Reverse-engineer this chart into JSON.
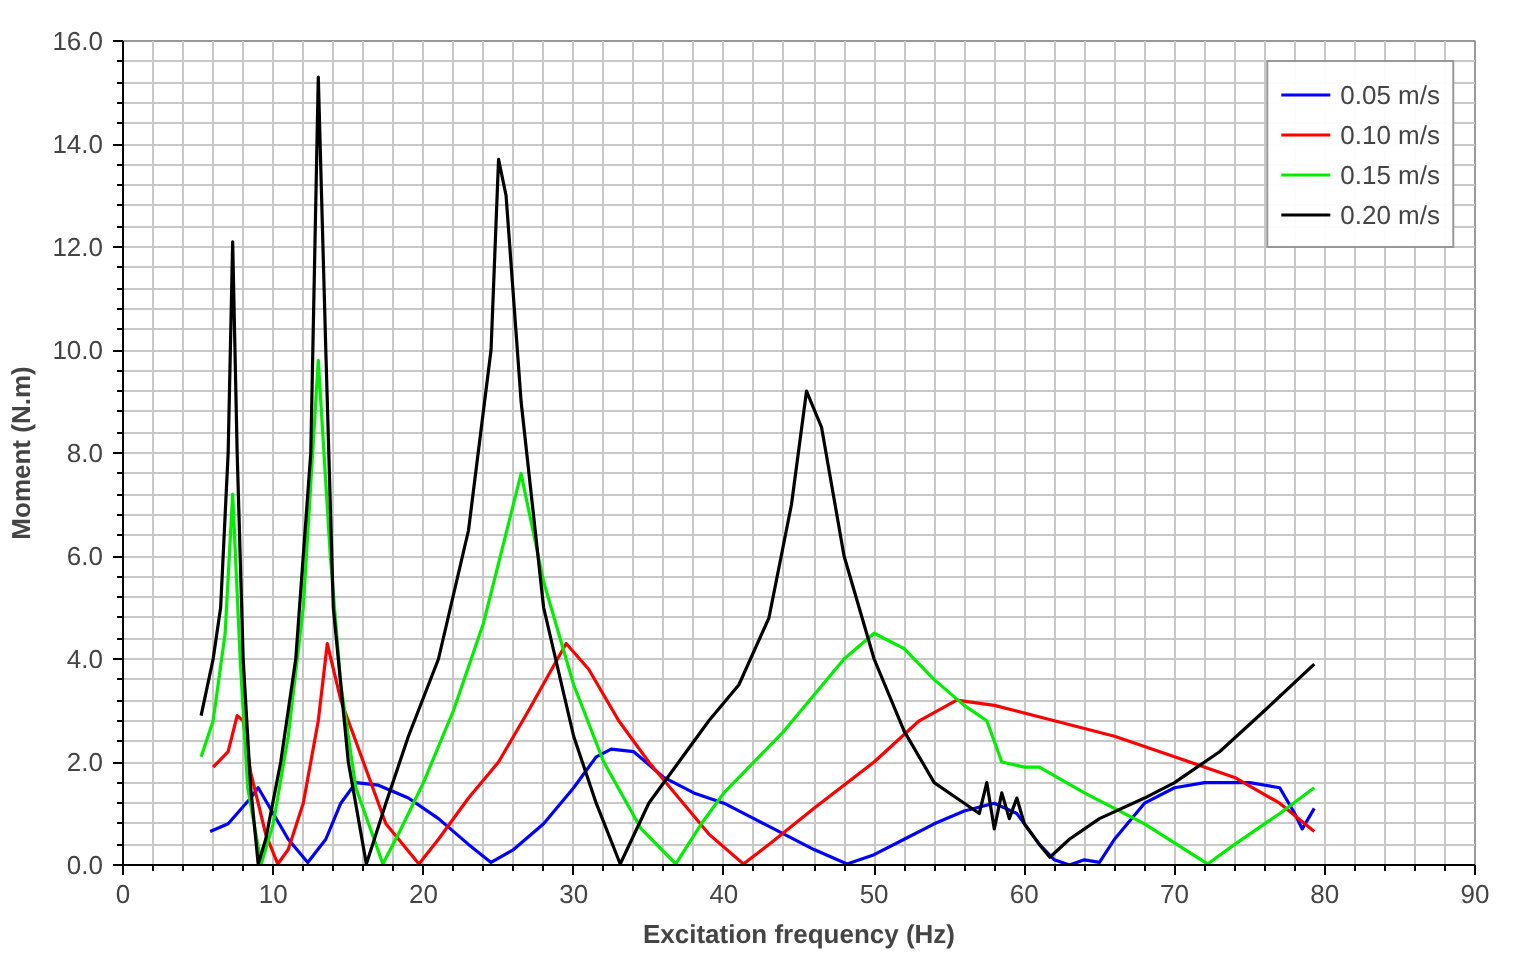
{
  "chart_data": {
    "type": "line",
    "xlabel": "Excitation frequency (Hz)",
    "ylabel": "Moment (N.m)",
    "xlim": [
      0,
      90
    ],
    "ylim": [
      0,
      16
    ],
    "xticks": [
      0,
      10,
      20,
      30,
      40,
      50,
      60,
      70,
      80,
      90
    ],
    "yticks": [
      {
        "value": 0,
        "label": "0.0"
      },
      {
        "value": 2,
        "label": "2.0"
      },
      {
        "value": 4,
        "label": "4.0"
      },
      {
        "value": 6,
        "label": "6.0"
      },
      {
        "value": 8,
        "label": "8.0"
      },
      {
        "value": 10,
        "label": "10.0"
      },
      {
        "value": 12,
        "label": "12.0"
      },
      {
        "value": 14,
        "label": "14.0"
      },
      {
        "value": 16,
        "label": "16.0"
      }
    ],
    "grid": true,
    "legend": "top right",
    "marker": "none",
    "line_style": "solid",
    "series": [
      {
        "name": "0.05 m/s",
        "color": "#0000ff",
        "x": [
          5.8,
          7,
          8.5,
          9,
          10,
          11,
          12.3,
          13.5,
          14.5,
          15.5,
          17,
          19,
          21,
          23,
          24.5,
          26,
          28,
          30,
          31.5,
          32.5,
          34,
          36,
          38,
          40,
          42,
          44,
          46,
          48.2,
          50,
          52,
          54,
          56,
          58,
          59.5,
          61,
          62,
          63,
          64,
          65,
          66,
          68,
          70,
          72,
          75,
          77,
          78,
          78.5,
          79.3
        ],
        "values": [
          0.65,
          0.8,
          1.3,
          1.5,
          1.0,
          0.5,
          0.05,
          0.5,
          1.2,
          1.6,
          1.55,
          1.3,
          0.9,
          0.4,
          0.05,
          0.3,
          0.8,
          1.5,
          2.1,
          2.25,
          2.2,
          1.7,
          1.4,
          1.2,
          0.9,
          0.6,
          0.3,
          0.02,
          0.2,
          0.5,
          0.8,
          1.05,
          1.2,
          1.0,
          0.4,
          0.1,
          0.0,
          0.1,
          0.05,
          0.5,
          1.2,
          1.5,
          1.6,
          1.6,
          1.5,
          1.0,
          0.7,
          1.1
        ]
      },
      {
        "name": "0.10 m/s",
        "color": "#ff0000",
        "x": [
          6,
          7,
          7.6,
          8,
          8.5,
          9.5,
          10.3,
          11,
          12,
          13,
          13.6,
          14.5,
          16,
          17.5,
          19.7,
          21,
          23,
          25,
          27,
          29.5,
          31,
          33,
          35,
          37,
          39,
          41.3,
          43,
          46,
          50,
          53,
          55.5,
          58,
          62,
          66,
          70,
          74,
          77,
          79.3
        ],
        "values": [
          1.9,
          2.2,
          2.9,
          2.8,
          1.8,
          0.6,
          0.02,
          0.3,
          1.2,
          2.8,
          4.3,
          3.2,
          2.0,
          0.8,
          0.02,
          0.5,
          1.3,
          2.0,
          3.0,
          4.3,
          3.8,
          2.8,
          2.0,
          1.3,
          0.6,
          0.02,
          0.4,
          1.1,
          2.0,
          2.8,
          3.2,
          3.1,
          2.8,
          2.5,
          2.1,
          1.7,
          1.2,
          0.65
        ]
      },
      {
        "name": "0.15 m/s",
        "color": "#00ee00",
        "x": [
          5.2,
          6,
          6.8,
          7.3,
          7.8,
          8.3,
          9.2,
          10,
          11,
          12,
          13,
          13.8,
          14.5,
          15.5,
          17.3,
          18.5,
          20,
          22,
          24,
          26.5,
          28,
          30,
          32,
          34.5,
          36.8,
          38.5,
          40,
          42,
          44,
          46,
          48,
          50,
          52,
          54,
          56,
          57.5,
          58.5,
          60,
          61,
          64,
          68,
          72.2,
          74,
          77,
          79.3
        ],
        "values": [
          2.1,
          2.8,
          4.5,
          7.2,
          4.0,
          1.5,
          0.02,
          0.8,
          2.5,
          5.0,
          9.8,
          6.0,
          3.5,
          1.5,
          0.02,
          0.7,
          1.6,
          3.0,
          4.7,
          7.6,
          5.5,
          3.5,
          2.0,
          0.7,
          0.02,
          0.8,
          1.4,
          2.0,
          2.6,
          3.3,
          4.0,
          4.5,
          4.2,
          3.6,
          3.1,
          2.8,
          2.0,
          1.9,
          1.9,
          1.4,
          0.8,
          0.02,
          0.4,
          1.0,
          1.5
        ]
      },
      {
        "name": "0.20 m/s",
        "color": "#000000",
        "x": [
          5.2,
          6,
          6.5,
          7,
          7.3,
          7.6,
          8,
          8.5,
          9,
          9.5,
          10.5,
          11.5,
          12.5,
          13,
          13.5,
          14,
          15,
          16.2,
          17.5,
          19,
          21,
          23,
          24.5,
          25,
          25.5,
          26.5,
          28,
          30,
          31.5,
          33.1,
          35,
          37,
          39,
          41,
          43,
          44.5,
          45.5,
          46.5,
          48,
          50,
          52,
          54,
          56,
          57,
          57.5,
          58,
          58.5,
          59,
          59.5,
          60,
          61,
          61.7,
          63,
          65,
          68,
          70,
          73,
          76,
          79.3
        ],
        "values": [
          2.9,
          4.0,
          5.0,
          8.0,
          12.1,
          8.0,
          4.0,
          1.5,
          0.02,
          0.5,
          2.0,
          4.0,
          8.0,
          15.3,
          10.0,
          5.0,
          2.0,
          0.02,
          1.2,
          2.5,
          4.0,
          6.5,
          10.0,
          13.7,
          13.0,
          9.0,
          5.0,
          2.5,
          1.2,
          0.02,
          1.2,
          2.0,
          2.8,
          3.5,
          4.8,
          7.0,
          9.2,
          8.5,
          6.0,
          4.0,
          2.6,
          1.6,
          1.2,
          1.0,
          1.6,
          0.7,
          1.4,
          0.9,
          1.3,
          0.8,
          0.4,
          0.15,
          0.5,
          0.9,
          1.3,
          1.6,
          2.2,
          3.0,
          3.9
        ]
      }
    ]
  }
}
